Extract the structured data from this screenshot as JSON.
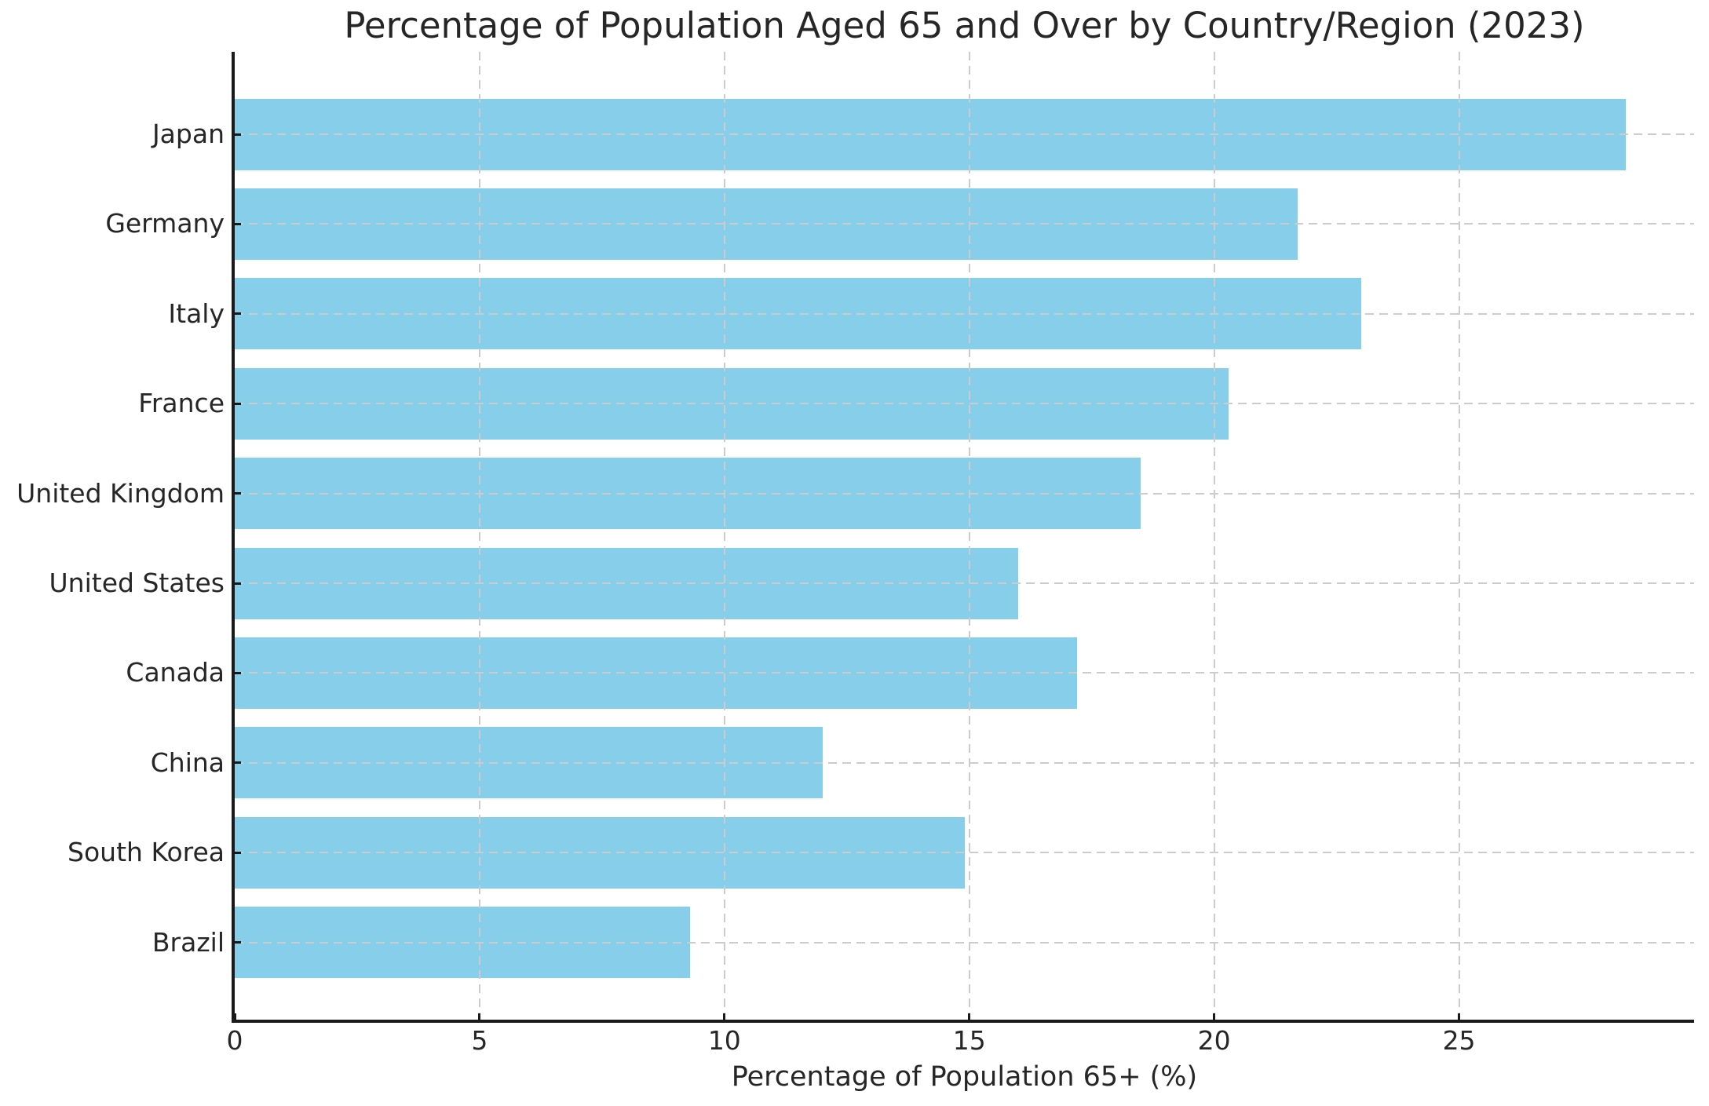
{
  "chart_data": {
    "type": "bar",
    "orientation": "horizontal",
    "title": "Percentage of Population Aged 65 and Over by Country/Region (2023)",
    "xlabel": "Percentage of Population 65+ (%)",
    "categories": [
      "Japan",
      "Germany",
      "Italy",
      "France",
      "United Kingdom",
      "United States",
      "Canada",
      "China",
      "South Korea",
      "Brazil"
    ],
    "values": [
      28.4,
      21.7,
      23.0,
      20.3,
      18.5,
      16.0,
      17.2,
      12.0,
      14.9,
      9.3
    ],
    "xticks": [
      0,
      5,
      10,
      15,
      20,
      25
    ],
    "xlim": [
      0,
      29.8
    ],
    "bar_color": "#87CEEB",
    "gridline_color": "#cccccc",
    "axis_color": "#1a1a1a",
    "text_color": "#262626",
    "grid_style": "dashed-both-axes-above-bars",
    "legend": "none"
  }
}
